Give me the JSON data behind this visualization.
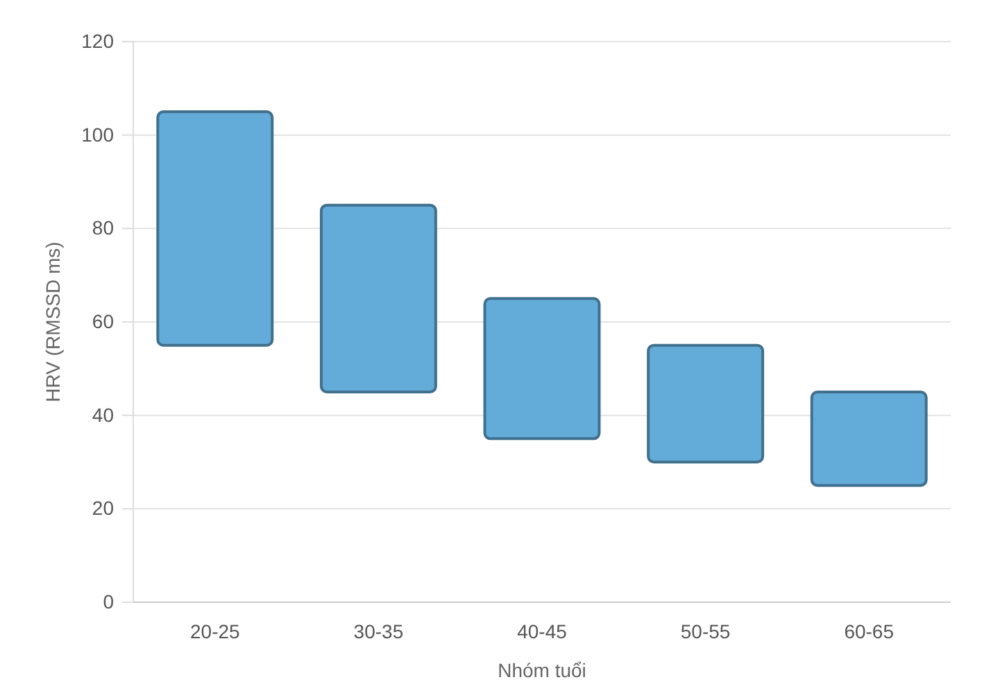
{
  "chart_data": {
    "type": "bar",
    "xlabel": "Nhóm tuổi",
    "ylabel": "HRV (RMSSD ms)",
    "categories": [
      "20-25",
      "30-35",
      "40-45",
      "50-55",
      "60-65"
    ],
    "base": [
      55,
      45,
      35,
      30,
      25
    ],
    "values": [
      50,
      40,
      30,
      25,
      20
    ],
    "color": "#63acd9",
    "ylim": [
      0,
      120
    ],
    "yticks": [
      0,
      20,
      40,
      60,
      80,
      100,
      120
    ],
    "grid": "y"
  }
}
